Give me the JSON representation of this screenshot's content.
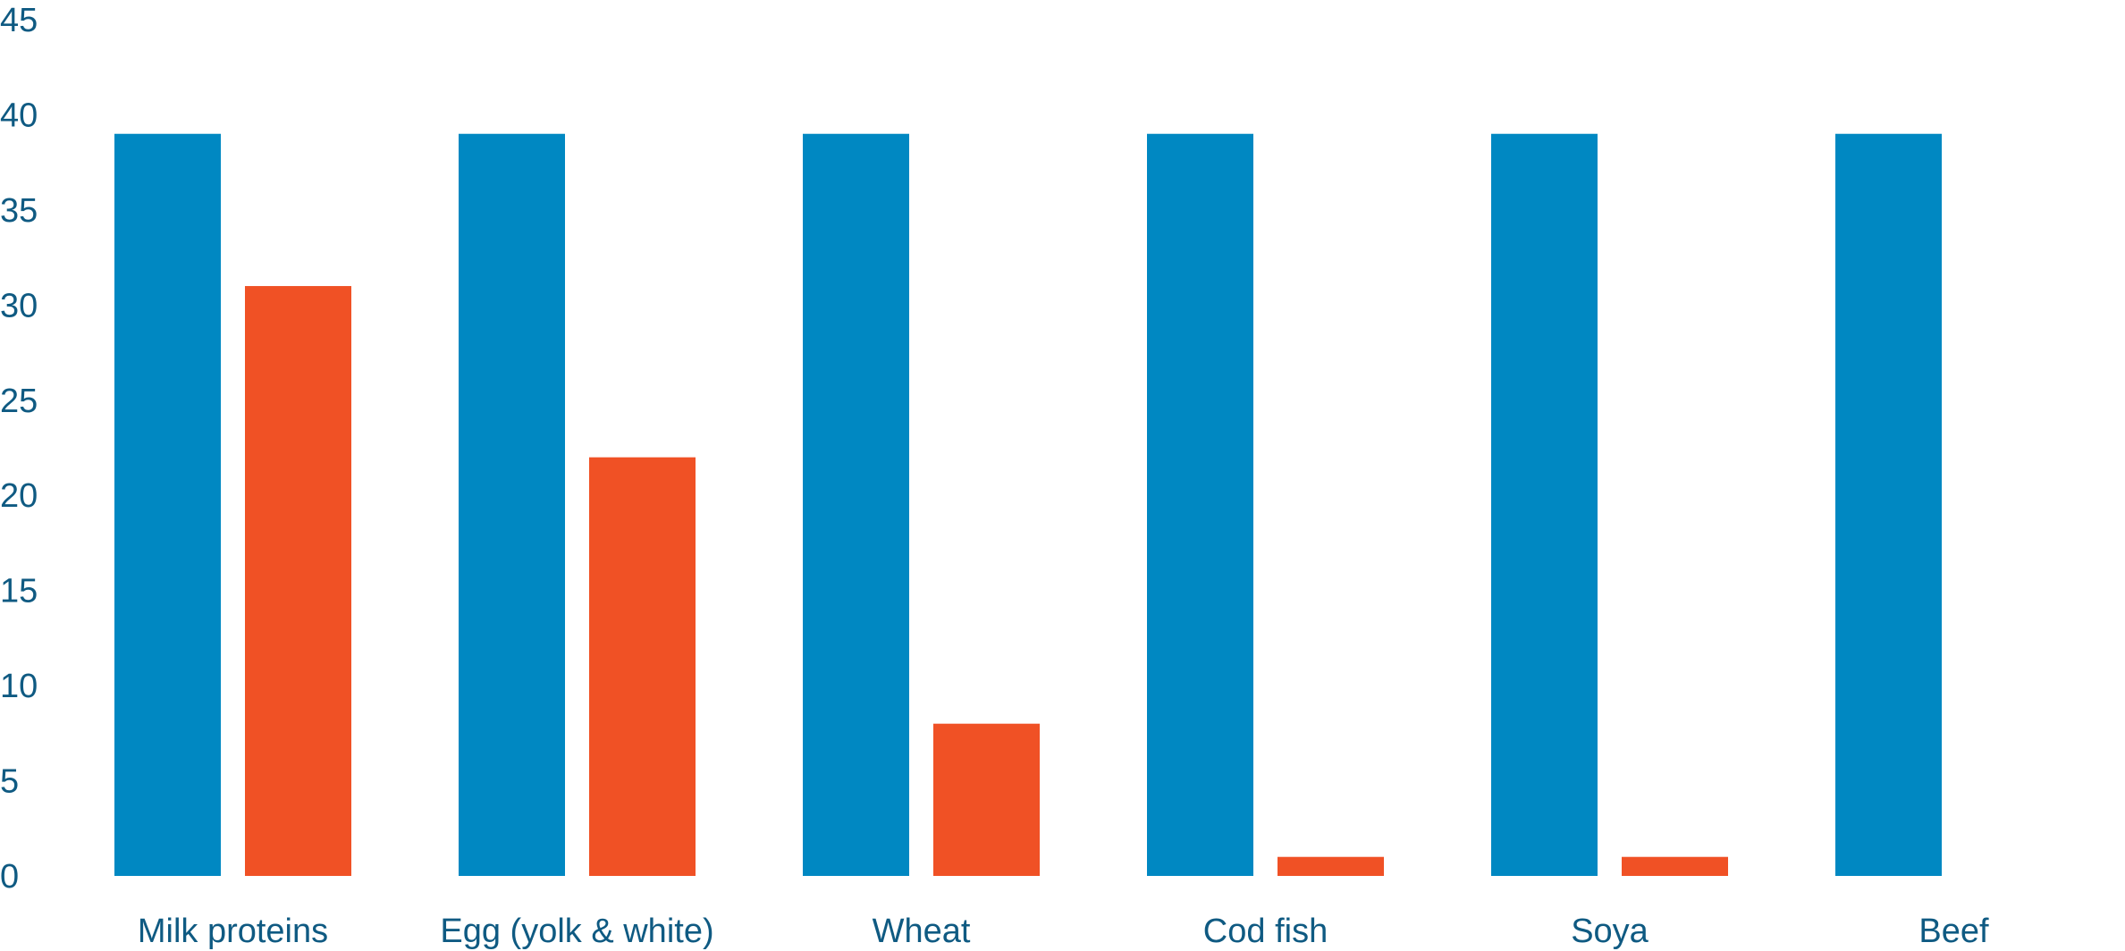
{
  "chart_data": {
    "type": "bar",
    "title": "",
    "xlabel": "",
    "ylabel": "",
    "categories": [
      "Milk proteins",
      "Egg (yolk & white)",
      "Wheat",
      "Cod fish",
      "Soya",
      "Beef"
    ],
    "series": [
      {
        "values": [
          39,
          39,
          39,
          39,
          39,
          39
        ],
        "color": "#0088c2"
      },
      {
        "values": [
          31,
          22,
          8,
          1,
          1,
          0
        ],
        "color": "#f05125"
      }
    ],
    "ylim": [
      0,
      45
    ],
    "yticks": [
      0,
      5,
      10,
      15,
      20,
      25,
      30,
      35,
      40,
      45
    ],
    "grid": false,
    "legend": "none",
    "text_color": "#0f5a82"
  }
}
